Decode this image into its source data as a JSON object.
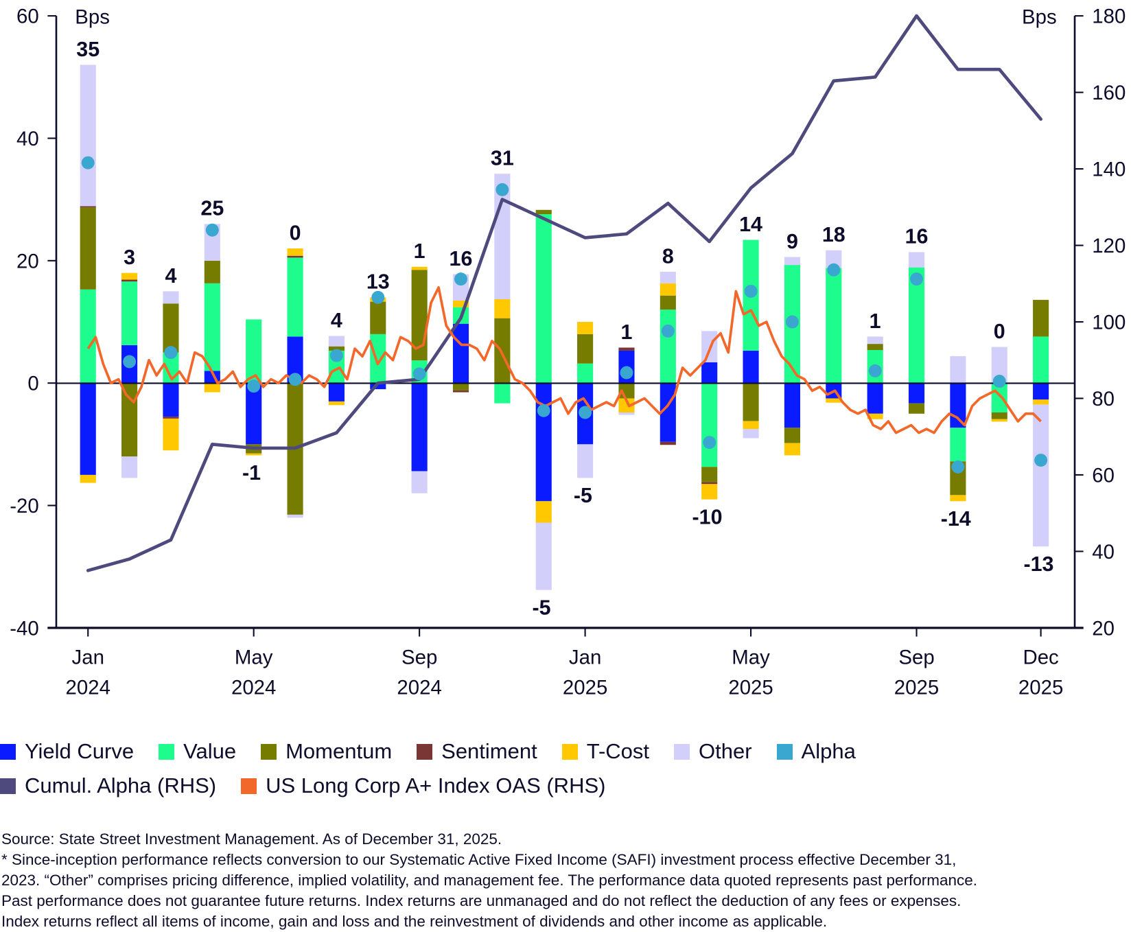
{
  "chart_data": {
    "type": "bar",
    "subtype": "stacked bar with dual-axis lines",
    "title": "",
    "categories": [
      "Jan 2024",
      "Feb 2024",
      "Mar 2024",
      "Apr 2024",
      "May 2024",
      "Jun 2024",
      "Jul 2024",
      "Aug 2024",
      "Sep 2024",
      "Oct 2024",
      "Nov 2024",
      "Dec 2024",
      "Jan 2025",
      "Feb 2025",
      "Mar 2025",
      "Apr 2025",
      "May 2025",
      "Jun 2025",
      "Jul 2025",
      "Aug 2025",
      "Sep 2025",
      "Oct 2025",
      "Nov 2025",
      "Dec 2025"
    ],
    "x_tick_labels": [
      {
        "index": 0,
        "month": "Jan",
        "year": "2024"
      },
      {
        "index": 4,
        "month": "May",
        "year": "2024"
      },
      {
        "index": 8,
        "month": "Sep",
        "year": "2024"
      },
      {
        "index": 12,
        "month": "Jan",
        "year": "2025"
      },
      {
        "index": 16,
        "month": "May",
        "year": "2025"
      },
      {
        "index": 20,
        "month": "Sep",
        "year": "2025"
      },
      {
        "index": 23,
        "month": "Dec",
        "year": "2025"
      }
    ],
    "ylabel_left": "Bps",
    "ylabel_right": "Bps",
    "ylim_left": [
      -40,
      60
    ],
    "ylim_right": [
      20,
      180
    ],
    "yticks_left": [
      60,
      40,
      20,
      0,
      -20,
      -40
    ],
    "yticks_right": [
      180,
      160,
      140,
      120,
      100,
      80,
      60,
      40,
      20
    ],
    "grid": false,
    "legend_position": "bottom",
    "series": [
      {
        "name": "Yield Curve",
        "color": "#0a1cff",
        "values": [
          -15,
          6.2,
          -5.5,
          2,
          -10,
          7.6,
          -3,
          -1,
          -14.4,
          9.7,
          0,
          -19.3,
          -10,
          5.3,
          -9.6,
          3.4,
          5.3,
          -7.3,
          -2.5,
          -5,
          -3.3,
          -7.3,
          0,
          -2.7
        ]
      },
      {
        "name": "Value",
        "color": "#1dfc8c",
        "values": [
          15.3,
          10.4,
          5,
          14.3,
          10.4,
          12.9,
          5.3,
          8,
          3.7,
          2.7,
          -3.3,
          27.6,
          3.2,
          0,
          12,
          -13.7,
          18.1,
          19.3,
          18.8,
          5.4,
          18.9,
          -5.5,
          -4.8,
          7.6
        ]
      },
      {
        "name": "Momentum",
        "color": "#767c00",
        "values": [
          13.4,
          -12,
          8,
          3.7,
          -1.5,
          -21.5,
          0.7,
          5.3,
          14.8,
          -1.2,
          10.6,
          0.7,
          4.8,
          -2.5,
          2.3,
          -2.5,
          -6.2,
          -2.5,
          0,
          1,
          -1.7,
          -5.5,
          -1.1,
          6
        ]
      },
      {
        "name": "Sentiment",
        "color": "#7a3535",
        "values": [
          0.2,
          0.3,
          -0.3,
          0,
          0,
          0.3,
          0,
          0,
          0,
          -0.3,
          0,
          0,
          0,
          0.5,
          -0.5,
          -0.3,
          0,
          0,
          0,
          0,
          0,
          0,
          0,
          0
        ]
      },
      {
        "name": "T-Cost",
        "color": "#ffc800",
        "values": [
          -1.3,
          1.1,
          -5.2,
          -1.5,
          -0.3,
          1.2,
          -0.6,
          0.7,
          0.5,
          1.1,
          3.1,
          -3.5,
          2,
          -2.3,
          2,
          -2.5,
          -1.3,
          -2,
          -0.7,
          -0.9,
          0,
          -1,
          -0.4,
          -0.8
        ]
      },
      {
        "name": "Other",
        "color": "#d2cffb",
        "values": [
          23.1,
          -3.5,
          2,
          6,
          0,
          -0.5,
          1.7,
          0,
          -3.6,
          4.3,
          20.5,
          -11,
          -5.5,
          -0.4,
          1.9,
          5.1,
          -1.5,
          1.3,
          2.9,
          1.2,
          2.5,
          4.4,
          5.9,
          -23.2
        ]
      }
    ],
    "alpha": {
      "name": "Alpha",
      "color": "#3aa7d0",
      "values": [
        36,
        3.5,
        5,
        25,
        -0.5,
        0.6,
        4.5,
        14,
        1.5,
        17,
        31.6,
        -4.5,
        -4.8,
        1.7,
        8.5,
        -9.7,
        15,
        10,
        18.5,
        2,
        17,
        -13.7,
        0.3,
        -12.6
      ]
    },
    "total_labels": [
      35,
      3,
      4,
      25,
      -1,
      0,
      4,
      13,
      1,
      16,
      31,
      -5,
      -5,
      1,
      8,
      -10,
      14,
      9,
      18,
      1,
      16,
      -14,
      0,
      -13
    ],
    "cumulative_alpha_rhs": {
      "name": "Cumul. Alpha (RHS)",
      "color": "#4e4a7e",
      "values": [
        35,
        38,
        43,
        68,
        67,
        67,
        71,
        84,
        85,
        101,
        132,
        127,
        122,
        123,
        131,
        121,
        135,
        144,
        163,
        164,
        180,
        166,
        166,
        153
      ]
    },
    "oas_rhs": {
      "name": "US Long Corp A+ Index OAS (RHS)",
      "color": "#f2682a",
      "frequency": "weekly",
      "values": [
        93,
        96,
        89,
        84,
        85,
        81,
        79,
        83,
        90,
        86,
        89,
        85,
        87,
        84,
        92,
        91,
        88,
        84,
        85,
        87,
        83,
        85,
        86,
        83,
        85,
        84,
        86,
        85,
        84,
        86,
        85,
        83,
        87,
        88,
        85,
        93,
        91,
        95,
        89,
        92,
        90,
        96,
        95,
        93,
        94,
        105,
        109,
        99,
        96,
        94,
        94,
        93,
        90,
        95,
        93,
        89,
        85,
        84,
        82,
        79,
        78,
        79,
        80,
        76,
        79,
        80,
        77,
        78,
        79,
        78,
        82,
        78,
        79,
        80,
        78,
        76,
        78,
        81,
        88,
        86,
        88,
        90,
        95,
        97,
        92,
        108,
        102,
        103,
        99,
        100,
        95,
        91,
        89,
        86,
        85,
        82,
        83,
        81,
        82,
        79,
        77,
        76,
        77,
        73,
        72,
        74,
        71,
        72,
        73,
        71,
        72,
        71,
        74,
        76,
        75,
        73,
        78,
        80,
        81,
        82,
        80,
        77,
        74,
        76,
        76,
        74
      ]
    }
  },
  "legend": {
    "row1": [
      {
        "label": "Yield Curve",
        "color": "#0a1cff"
      },
      {
        "label": "Value",
        "color": "#1dfc8c"
      },
      {
        "label": "Momentum",
        "color": "#767c00"
      },
      {
        "label": "Sentiment",
        "color": "#7a3535"
      },
      {
        "label": "T-Cost",
        "color": "#ffc800"
      },
      {
        "label": "Other",
        "color": "#d2cffb"
      },
      {
        "label": "Alpha",
        "color": "#3aa7d0"
      }
    ],
    "row2": [
      {
        "label": "Cumul. Alpha (RHS)",
        "color": "#4e4a7e"
      },
      {
        "label": "US Long Corp A+ Index OAS (RHS)",
        "color": "#f2682a"
      }
    ]
  },
  "footnote": {
    "source": "Source: State Street Investment Management. As of December 31, 2025.",
    "lines": [
      "* Since-inception performance reflects conversion to our Systematic Active Fixed Income (SAFI) investment process effective December 31,",
      "2023. “Other” comprises pricing difference, implied volatility, and management fee. The performance data quoted represents past performance.",
      "Past performance does not guarantee future returns. Index returns are unmanaged and do not reflect the deduction of any fees or expenses.",
      "Index returns reflect all items of income, gain and loss and the reinvestment of dividends and other income as applicable."
    ]
  }
}
